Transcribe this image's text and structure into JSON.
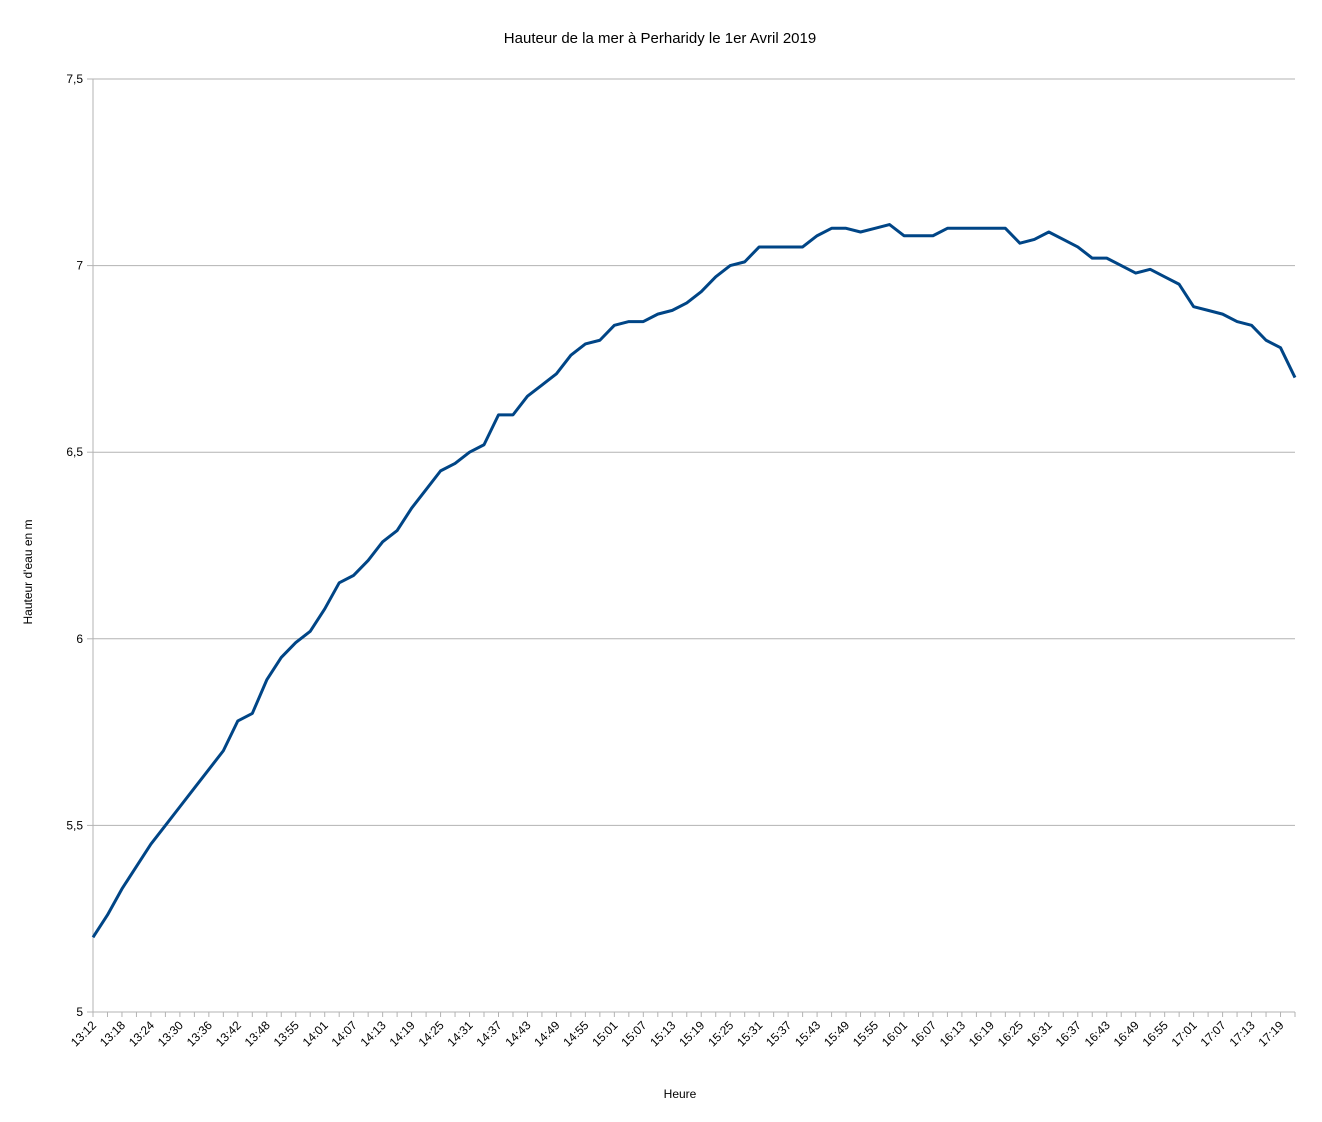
{
  "chart_data": {
    "type": "line",
    "title": "Hauteur de la mer à Perharidy le 1er Avril 2019",
    "xlabel": "Heure",
    "ylabel": "Hauteur d'eau en m",
    "categories": [
      "13:12",
      null,
      "13:18",
      null,
      "13:24",
      null,
      "13:30",
      null,
      "13:36",
      null,
      "13:42",
      null,
      "13:48",
      null,
      "13:55",
      null,
      "14:01",
      null,
      "14:07",
      null,
      "14:13",
      null,
      "14:19",
      null,
      "14:25",
      null,
      "14:31",
      null,
      "14:37",
      null,
      "14:43",
      null,
      "14:49",
      null,
      "14:55",
      null,
      "15:01",
      null,
      "15:07",
      null,
      "15:13",
      null,
      "15:19",
      null,
      "15:25",
      null,
      "15:31",
      null,
      "15:37",
      null,
      "15:43",
      null,
      "15:49",
      null,
      "15:55",
      null,
      "16:01",
      null,
      "16:07",
      null,
      "16:13",
      null,
      "16:19",
      null,
      "16:25",
      null,
      "16:31",
      null,
      "16:37",
      null,
      "16:43",
      null,
      "16:49",
      null,
      "16:55",
      null,
      "17:01",
      null,
      "17:07",
      null,
      "17:13",
      null,
      "17:19",
      null
    ],
    "series": [
      {
        "name": "Hauteur d'eau",
        "color": "#004586",
        "values": [
          5.2,
          5.26,
          5.33,
          5.39,
          5.45,
          5.5,
          5.55,
          5.6,
          5.65,
          5.7,
          5.78,
          5.8,
          5.89,
          5.95,
          5.99,
          6.02,
          6.08,
          6.15,
          6.17,
          6.21,
          6.26,
          6.29,
          6.35,
          6.4,
          6.45,
          6.47,
          6.5,
          6.52,
          6.6,
          6.6,
          6.65,
          6.68,
          6.71,
          6.76,
          6.79,
          6.8,
          6.84,
          6.85,
          6.85,
          6.87,
          6.88,
          6.9,
          6.93,
          6.97,
          7.0,
          7.01,
          7.05,
          7.05,
          7.05,
          7.05,
          7.08,
          7.1,
          7.1,
          7.09,
          7.1,
          7.11,
          7.08,
          7.08,
          7.08,
          7.1,
          7.1,
          7.1,
          7.1,
          7.1,
          7.06,
          7.07,
          7.09,
          7.07,
          7.05,
          7.02,
          7.02,
          7.0,
          6.98,
          6.99,
          6.97,
          6.95,
          6.89,
          6.88,
          6.87,
          6.85,
          6.84,
          6.8,
          6.78,
          6.7
        ]
      }
    ],
    "ylim": [
      5,
      7.5
    ],
    "yticks": [
      5,
      {
        "value": 5.5,
        "label": "5,5"
      },
      6,
      {
        "value": 6.5,
        "label": "6,5"
      },
      7,
      {
        "value": 7.5,
        "label": "7,5"
      }
    ],
    "grid": true
  }
}
